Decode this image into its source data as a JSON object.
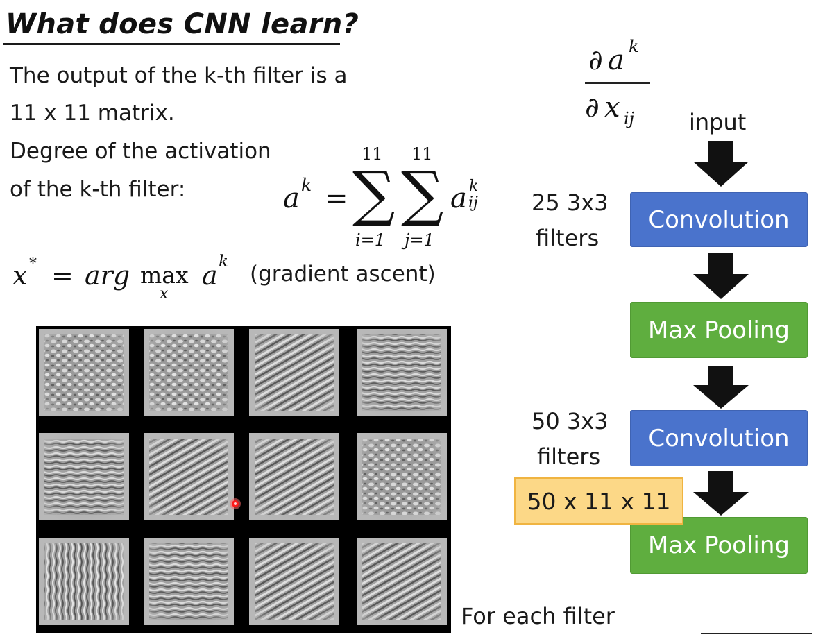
{
  "title": "What does CNN learn?",
  "body": {
    "line1": "The output of the k-th filter is a",
    "line2": "11 x 11 matrix.",
    "line3": "Degree of the activation",
    "line4": "of the k-th filter:",
    "gradient_note": "(gradient ascent)",
    "caption": "For each filter"
  },
  "formula_activation": {
    "lhs": "a",
    "lhs_sup": "k",
    "equals": "=",
    "sum1_upper": "11",
    "sum1_lower": "i=1",
    "sum2_upper": "11",
    "sum2_lower": "j=1",
    "sum_symbol": "∑",
    "term": "a",
    "term_sup": "k",
    "term_sub": "ij"
  },
  "formula_argmax": {
    "x": "x",
    "star": "*",
    "equals": "=",
    "arg": "arg",
    "max": "max",
    "max_sub": "x",
    "a": "a",
    "a_sup": "k"
  },
  "formula_derivative": {
    "num_d": "∂",
    "num_a": "a",
    "num_sup": "k",
    "den_d": "∂",
    "den_x": "x",
    "den_sub": "ij"
  },
  "flow": {
    "input_label": "input",
    "conv1_label": "Convolution",
    "conv1_note_line1": "25 3x3",
    "conv1_note_line2": "filters",
    "pool1_label": "Max Pooling",
    "conv2_label": "Convolution",
    "conv2_note_line1": "50 3x3",
    "conv2_note_line2": "filters",
    "shape_label": "50 x 11 x 11",
    "pool2_label": "Max Pooling"
  },
  "colors": {
    "convolution": "#4a73cc",
    "pooling": "#5fae3f",
    "shape_box_fill": "#fcd887",
    "shape_box_border": "#f0b441",
    "cursor": "#ff2020"
  },
  "filter_images": {
    "rows": 3,
    "cols": 4,
    "tiles": [
      {
        "pattern": "blobs"
      },
      {
        "pattern": "blobs"
      },
      {
        "pattern": "diagonal-stripes"
      },
      {
        "pattern": "horizontal-stripes"
      },
      {
        "pattern": "horizontal-stripes"
      },
      {
        "pattern": "diagonal-stripes"
      },
      {
        "pattern": "diagonal-stripes"
      },
      {
        "pattern": "blobs"
      },
      {
        "pattern": "vertical-stripes"
      },
      {
        "pattern": "horizontal-stripes"
      },
      {
        "pattern": "diagonal-stripes"
      },
      {
        "pattern": "diagonal-stripes"
      }
    ]
  }
}
